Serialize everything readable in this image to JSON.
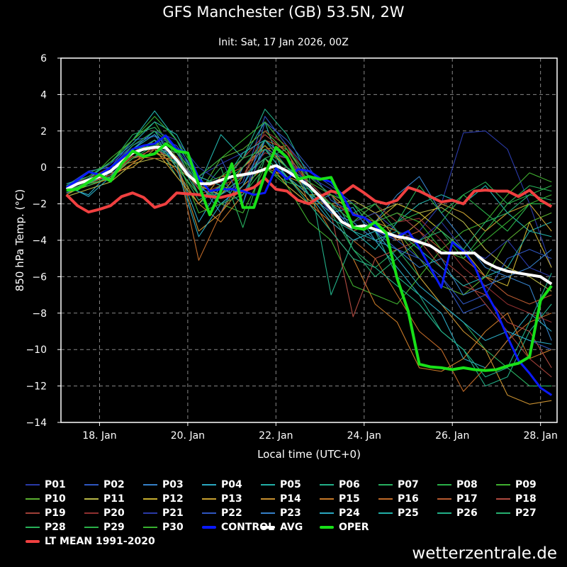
{
  "title": "GFS Manchester (GB) 53.5N, 2W",
  "subtitle": "Init: Sat, 17 Jan 2026, 00Z",
  "footer": "wetterzentrale.de",
  "chart_data": {
    "type": "line",
    "xlabel": "Local time (UTC+0)",
    "ylabel": "850 hPa Temp. (°C)",
    "ylim": [
      -14,
      6
    ],
    "yticks": [
      6,
      4,
      2,
      0,
      -2,
      -4,
      -6,
      -8,
      -10,
      -12,
      -14
    ],
    "xticks": [
      "18. Jan",
      "20. Jan",
      "22. Jan",
      "24. Jan",
      "26. Jan",
      "28. Jan"
    ],
    "xtick_dates": [
      "18 Jan 00",
      "20 Jan 00",
      "22 Jan 00",
      "24 Jan 00",
      "26 Jan 00",
      "28 Jan 00"
    ],
    "xlim": [
      "17 Jan 03",
      "28 Jan 09"
    ],
    "grid": true,
    "legend_placement": "bottom",
    "x": [
      "17 Jan 06",
      "17 Jan 12",
      "17 Jan 18",
      "18 Jan 00",
      "18 Jan 06",
      "18 Jan 12",
      "18 Jan 18",
      "19 Jan 00",
      "19 Jan 06",
      "19 Jan 12",
      "19 Jan 18",
      "20 Jan 00",
      "20 Jan 06",
      "20 Jan 12",
      "20 Jan 18",
      "21 Jan 00",
      "21 Jan 06",
      "21 Jan 12",
      "21 Jan 18",
      "22 Jan 00",
      "22 Jan 06",
      "22 Jan 12",
      "22 Jan 18",
      "23 Jan 00",
      "23 Jan 06",
      "23 Jan 12",
      "23 Jan 18",
      "24 Jan 00",
      "24 Jan 06",
      "24 Jan 12",
      "24 Jan 18",
      "25 Jan 00",
      "25 Jan 06",
      "25 Jan 12",
      "25 Jan 18",
      "26 Jan 00",
      "26 Jan 06",
      "26 Jan 12",
      "26 Jan 18",
      "27 Jan 00",
      "27 Jan 06",
      "27 Jan 12",
      "27 Jan 18",
      "28 Jan 00",
      "28 Jan 06"
    ],
    "x_members": [
      "17 Jan 06",
      "17 Jan 18",
      "18 Jan 06",
      "18 Jan 18",
      "19 Jan 06",
      "19 Jan 18",
      "20 Jan 06",
      "20 Jan 18",
      "21 Jan 06",
      "21 Jan 18",
      "22 Jan 06",
      "22 Jan 18",
      "23 Jan 06",
      "23 Jan 18",
      "24 Jan 06",
      "24 Jan 18",
      "25 Jan 06",
      "25 Jan 18",
      "26 Jan 06",
      "26 Jan 18",
      "27 Jan 06",
      "27 Jan 18",
      "28 Jan 06"
    ],
    "members": [
      {
        "name": "P01",
        "color": "#2a3aa8",
        "values": [
          -1.2,
          -0.6,
          -0.3,
          0.8,
          1.5,
          1.0,
          -0.5,
          0.2,
          0.8,
          1.5,
          0.5,
          -0.5,
          -1.2,
          -2.5,
          -3.0,
          -2.5,
          -3.5,
          -2.0,
          1.9,
          2.0,
          1.0,
          -2.0,
          -5.5
        ]
      },
      {
        "name": "P02",
        "color": "#2f56c0",
        "values": [
          -1.0,
          -0.2,
          0.0,
          1.2,
          1.8,
          0.8,
          -1.2,
          -1.5,
          -0.8,
          2.8,
          1.2,
          -0.2,
          -1.0,
          -2.0,
          -3.5,
          -4.0,
          -5.0,
          -6.0,
          -8.0,
          -7.5,
          -9.0,
          -9.5,
          -10.0
        ]
      },
      {
        "name": "P03",
        "color": "#3580c8",
        "values": [
          -1.4,
          -0.8,
          -0.5,
          0.5,
          1.0,
          0.5,
          -0.8,
          -2.5,
          0.0,
          1.0,
          0.0,
          -0.8,
          -2.0,
          -3.5,
          -3.0,
          -1.5,
          -0.5,
          -2.5,
          -4.0,
          -5.5,
          -6.0,
          -6.5,
          -9.5
        ]
      },
      {
        "name": "P04",
        "color": "#2aa8c0",
        "values": [
          -1.1,
          -1.5,
          -0.2,
          1.0,
          2.0,
          0.2,
          -3.0,
          -1.0,
          -2.0,
          1.5,
          0.0,
          -1.0,
          -2.5,
          -2.2,
          -4.0,
          -5.5,
          -7.0,
          -8.0,
          -10.5,
          -11.0,
          -9.5,
          -8.0,
          -9.0
        ]
      },
      {
        "name": "P05",
        "color": "#22b0a8",
        "values": [
          -0.9,
          -0.5,
          0.3,
          1.5,
          3.1,
          1.5,
          -1.0,
          1.8,
          0.5,
          2.5,
          -1.0,
          -2.0,
          -1.5,
          -3.5,
          -4.5,
          -3.0,
          -2.0,
          -1.5,
          -2.0,
          -1.0,
          -2.5,
          -3.5,
          -3.0
        ]
      },
      {
        "name": "P06",
        "color": "#22b088",
        "values": [
          -1.3,
          -1.0,
          -0.5,
          0.5,
          1.5,
          -0.5,
          -2.0,
          -1.0,
          0.5,
          3.2,
          1.8,
          -0.5,
          -7.0,
          -4.0,
          -3.5,
          -6.0,
          -7.0,
          -9.0,
          -10.0,
          -12.0,
          -11.5,
          -9.0,
          -7.5
        ]
      },
      {
        "name": "P07",
        "color": "#28b060",
        "values": [
          -1.2,
          -0.3,
          0.2,
          1.8,
          2.2,
          1.0,
          -1.5,
          0.0,
          -3.3,
          0.5,
          -0.5,
          -1.5,
          -2.5,
          -4.5,
          -5.5,
          -4.5,
          -6.0,
          -7.5,
          -8.5,
          -10.0,
          -11.0,
          -12.0,
          -12.0
        ]
      },
      {
        "name": "P08",
        "color": "#2ab048",
        "values": [
          -1.5,
          -0.9,
          -0.6,
          1.0,
          1.2,
          0.8,
          -0.5,
          -1.0,
          -1.5,
          0.0,
          -0.8,
          -1.2,
          -2.0,
          -2.5,
          -2.0,
          -3.0,
          -2.5,
          -3.5,
          -5.0,
          -3.5,
          -2.0,
          -1.5,
          -1.0
        ]
      },
      {
        "name": "P09",
        "color": "#40b030",
        "values": [
          -1.0,
          -0.7,
          0.5,
          1.5,
          2.5,
          0.5,
          -2.5,
          -2.0,
          -2.5,
          0.0,
          -1.0,
          -3.0,
          -4.0,
          -6.5,
          -7.0,
          -7.5,
          -6.0,
          -4.5,
          -3.5,
          -3.0,
          -1.5,
          -0.3,
          -0.8
        ]
      },
      {
        "name": "P10",
        "color": "#5ab030",
        "values": [
          -1.3,
          -0.8,
          0.0,
          0.8,
          1.5,
          0.0,
          -1.5,
          0.5,
          1.0,
          2.0,
          0.8,
          -1.0,
          -2.5,
          -3.0,
          -2.5,
          -3.5,
          -5.0,
          -6.5,
          -7.0,
          -6.0,
          -4.0,
          -3.0,
          -2.5
        ]
      },
      {
        "name": "P11",
        "color": "#b8b848",
        "values": [
          -1.6,
          -1.2,
          -0.8,
          0.2,
          0.5,
          0.0,
          -1.0,
          -1.5,
          -0.5,
          0.5,
          -0.5,
          -1.8,
          -2.0,
          -1.8,
          -2.5,
          -2.0,
          -2.5,
          -2.2,
          -3.0,
          -4.5,
          -5.5,
          -6.0,
          -6.8
        ]
      },
      {
        "name": "P12",
        "color": "#c8b030",
        "values": [
          -1.4,
          -1.0,
          -0.6,
          0.5,
          0.8,
          0.5,
          -1.0,
          -1.5,
          0.0,
          1.2,
          0.0,
          -1.5,
          -1.5,
          -2.5,
          -3.0,
          -2.0,
          -2.5,
          -3.5,
          -4.5,
          -6.0,
          -6.5,
          -3.0,
          -5.5
        ]
      },
      {
        "name": "P13",
        "color": "#c8a030",
        "values": [
          -1.5,
          -0.8,
          -0.3,
          0.0,
          1.0,
          -0.5,
          -2.0,
          -0.5,
          -0.5,
          0.5,
          -1.0,
          -2.0,
          -2.0,
          -3.0,
          -2.5,
          -4.0,
          -3.0,
          -2.0,
          -2.5,
          -3.5,
          -2.5,
          -2.0,
          -3.5
        ]
      },
      {
        "name": "P14",
        "color": "#c89030",
        "values": [
          -1.3,
          -0.6,
          0.0,
          0.3,
          0.8,
          0.2,
          -3.5,
          -2.5,
          -1.0,
          0.0,
          -0.5,
          -1.0,
          -2.0,
          -2.5,
          -3.0,
          -3.5,
          -6.0,
          -7.5,
          -9.0,
          -10.0,
          -12.5,
          -13.0,
          -12.8
        ]
      },
      {
        "name": "P15",
        "color": "#c87a28",
        "values": [
          -1.2,
          -1.0,
          -0.5,
          0.2,
          1.2,
          -0.2,
          -2.0,
          -3.0,
          -1.5,
          1.0,
          0.5,
          -1.5,
          -3.5,
          -5.0,
          -7.5,
          -8.5,
          -11.0,
          -11.2,
          -10.5,
          -9.0,
          -8.0,
          -10.5,
          -10.0
        ]
      },
      {
        "name": "P16",
        "color": "#c06a28",
        "values": [
          -1.4,
          -0.9,
          -0.4,
          0.6,
          0.5,
          0.5,
          -5.1,
          -2.5,
          -0.5,
          1.5,
          1.0,
          -2.0,
          -3.0,
          -4.0,
          -5.0,
          -7.0,
          -9.0,
          -10.0,
          -12.3,
          -11.0,
          -9.5,
          -8.5,
          -8.0
        ]
      },
      {
        "name": "P17",
        "color": "#b85a30",
        "values": [
          -1.1,
          -0.7,
          -0.2,
          1.0,
          1.3,
          0.6,
          -1.0,
          -0.5,
          0.0,
          1.0,
          1.2,
          -1.0,
          -2.5,
          -3.5,
          -3.0,
          -4.0,
          -3.5,
          -4.5,
          -5.0,
          -6.0,
          -7.0,
          -7.5,
          -7.0
        ]
      },
      {
        "name": "P18",
        "color": "#b04a40",
        "values": [
          -1.3,
          -0.8,
          -0.4,
          0.5,
          1.0,
          0.4,
          -1.2,
          -0.8,
          0.5,
          1.8,
          0.8,
          -1.0,
          -2.5,
          -8.2,
          -5.0,
          -4.5,
          -4.0,
          -5.5,
          -6.5,
          -7.0,
          -8.5,
          -9.0,
          -11.0
        ]
      },
      {
        "name": "P19",
        "color": "#a04038",
        "values": [
          -1.2,
          -1.0,
          -0.5,
          0.7,
          1.5,
          0.5,
          -1.5,
          -1.0,
          -0.5,
          0.8,
          0.5,
          -0.8,
          -2.0,
          -2.5,
          -3.0,
          -2.5,
          -3.5,
          -5.0,
          -6.0,
          -7.5,
          -9.0,
          -10.5,
          -11.5
        ]
      },
      {
        "name": "P20",
        "color": "#903030",
        "values": [
          -1.0,
          -0.6,
          0.0,
          1.0,
          1.0,
          0.8,
          -0.5,
          -1.0,
          -0.5,
          2.0,
          1.2,
          -0.5,
          -1.5,
          -3.0,
          -2.0,
          -3.0,
          -2.8,
          -4.0,
          -5.5,
          -6.5,
          -7.5,
          -8.0,
          -8.5
        ]
      },
      {
        "name": "P21",
        "color": "#2a3aa8",
        "values": [
          -1.1,
          -0.5,
          0.2,
          1.2,
          2.0,
          1.5,
          0.0,
          -0.8,
          -1.5,
          1.0,
          0.5,
          -1.0,
          -2.5,
          -3.0,
          -2.5,
          -3.5,
          -4.0,
          -3.0,
          -4.5,
          -5.0,
          -4.0,
          -5.5,
          -6.0
        ]
      },
      {
        "name": "P22",
        "color": "#2f56c0",
        "values": [
          -1.2,
          -0.7,
          0.0,
          1.5,
          1.7,
          1.2,
          -0.5,
          0.5,
          -2.0,
          2.5,
          1.5,
          0.0,
          -1.8,
          -2.5,
          -3.5,
          -4.5,
          -5.0,
          -6.0,
          -7.5,
          -7.0,
          -5.0,
          -4.5,
          -5.0
        ]
      },
      {
        "name": "P23",
        "color": "#3580c8",
        "values": [
          -1.4,
          -0.8,
          -0.3,
          0.8,
          1.2,
          0.5,
          -1.0,
          -2.0,
          -1.0,
          1.5,
          0.5,
          -1.5,
          -2.5,
          -3.0,
          -4.0,
          -4.5,
          -5.5,
          -5.0,
          -7.0,
          -6.5,
          -6.0,
          -5.5,
          -4.5
        ]
      },
      {
        "name": "P24",
        "color": "#2aa8c0",
        "values": [
          -1.0,
          -1.6,
          -0.5,
          1.0,
          1.8,
          0.0,
          -3.8,
          -2.0,
          -1.0,
          1.0,
          -0.5,
          -1.5,
          -3.0,
          -4.0,
          -3.5,
          -5.0,
          -6.5,
          -7.5,
          -8.5,
          -9.5,
          -9.0,
          -9.5,
          -9.7
        ]
      },
      {
        "name": "P25",
        "color": "#22b0a8",
        "values": [
          -1.2,
          -0.6,
          0.3,
          1.3,
          2.5,
          1.8,
          -0.5,
          -1.0,
          0.8,
          1.5,
          0.0,
          -1.2,
          -2.8,
          -3.5,
          -4.0,
          -3.5,
          -4.5,
          -5.5,
          -6.5,
          -6.0,
          -5.5,
          -3.5,
          -3.8
        ]
      },
      {
        "name": "P26",
        "color": "#22b088",
        "values": [
          -1.3,
          -0.9,
          -0.2,
          0.8,
          1.5,
          0.5,
          -1.5,
          -1.5,
          -0.5,
          0.5,
          -0.5,
          -2.0,
          -3.5,
          -5.0,
          -5.5,
          -6.5,
          -7.5,
          -9.0,
          -10.0,
          -11.5,
          -11.0,
          -8.5,
          -5.8
        ]
      },
      {
        "name": "P27",
        "color": "#26b070",
        "values": [
          -1.1,
          -0.7,
          0.0,
          1.0,
          1.3,
          0.2,
          -1.8,
          -1.0,
          0.0,
          1.5,
          0.0,
          -1.5,
          -2.0,
          -4.5,
          -6.0,
          -5.0,
          -4.0,
          -3.5,
          -4.5,
          -3.0,
          -2.5,
          -1.5,
          -1.8
        ]
      },
      {
        "name": "P28",
        "color": "#28b058",
        "values": [
          -1.2,
          -1.0,
          -0.5,
          0.5,
          1.2,
          0.8,
          -0.5,
          -2.0,
          -1.5,
          0.5,
          1.0,
          -0.5,
          -1.5,
          -2.0,
          -3.5,
          -3.0,
          -1.0,
          -2.5,
          -1.5,
          -0.8,
          -2.0,
          -1.0,
          -1.3
        ]
      },
      {
        "name": "P29",
        "color": "#2ab048",
        "values": [
          -1.3,
          -0.8,
          -0.2,
          1.2,
          2.0,
          1.0,
          -1.0,
          -0.5,
          0.5,
          1.0,
          0.0,
          -1.0,
          -2.0,
          -3.0,
          -2.0,
          -3.5,
          -4.5,
          -3.0,
          -1.5,
          -2.5,
          -3.5,
          -2.0,
          -2.0
        ]
      },
      {
        "name": "P30",
        "color": "#38b030",
        "values": [
          -1.0,
          -0.5,
          0.3,
          1.5,
          2.8,
          1.5,
          -0.5,
          0.5,
          1.5,
          2.5,
          1.0,
          -0.8,
          -1.5,
          -2.0,
          -3.0,
          -2.5,
          -3.0,
          -4.5,
          -5.0,
          -4.0,
          -3.0,
          -2.0,
          -1.5
        ]
      }
    ],
    "series": [
      {
        "name": "CONTROL",
        "color": "#0a1aff",
        "values": [
          -1.1,
          -0.7,
          -0.25,
          -0.4,
          0.0,
          0.5,
          1.0,
          1.2,
          1.3,
          1.75,
          1.0,
          0.8,
          -0.6,
          -1.3,
          -1.2,
          -1.2,
          -1.3,
          -1.5,
          -1.4,
          -0.05,
          -0.65,
          -0.1,
          -0.2,
          -0.6,
          -0.8,
          -1.5,
          -2.6,
          -2.75,
          -3.2,
          -3.7,
          -3.8,
          -3.5,
          -4.4,
          -5.5,
          -6.6,
          -4.1,
          -4.6,
          -5.4,
          -6.8,
          -7.9,
          -9.3,
          -10.6,
          -11.3,
          -12.1,
          -12.5
        ]
      },
      {
        "name": "AVG",
        "color": "#ffffff",
        "values": [
          -1.2,
          -0.9,
          -0.7,
          -0.5,
          -0.2,
          0.3,
          0.8,
          1.0,
          1.1,
          1.1,
          0.4,
          -0.4,
          -0.9,
          -0.9,
          -0.7,
          -0.5,
          -0.4,
          -0.3,
          -0.1,
          0.1,
          -0.2,
          -0.6,
          -1.0,
          -1.6,
          -2.3,
          -3.0,
          -3.3,
          -3.2,
          -3.4,
          -3.6,
          -3.8,
          -3.9,
          -4.1,
          -4.3,
          -4.7,
          -4.7,
          -4.7,
          -4.7,
          -5.2,
          -5.5,
          -5.7,
          -5.8,
          -5.9,
          -6.0,
          -6.4
        ]
      },
      {
        "name": "OPER",
        "color": "#18e018",
        "values": [
          -1.25,
          -1.2,
          -0.8,
          -0.4,
          -0.75,
          0.2,
          0.9,
          0.6,
          0.75,
          1.3,
          0.9,
          0.8,
          -0.95,
          -2.6,
          -1.3,
          0.2,
          -2.2,
          -2.2,
          -0.4,
          1.1,
          0.55,
          -0.65,
          -0.5,
          -0.65,
          -0.55,
          -1.8,
          -3.3,
          -3.4,
          -3.0,
          -3.6,
          -6.1,
          -7.9,
          -10.8,
          -10.95,
          -11.0,
          -11.1,
          -11.0,
          -11.1,
          -11.15,
          -11.1,
          -10.9,
          -10.75,
          -10.4,
          -7.3,
          -6.5
        ]
      },
      {
        "name": "LT MEAN 1991-2020",
        "color": "#f04040",
        "values": [
          -1.5,
          -2.1,
          -2.45,
          -2.3,
          -2.1,
          -1.6,
          -1.4,
          -1.65,
          -2.2,
          -2.0,
          -1.4,
          -1.45,
          -1.5,
          -1.6,
          -1.65,
          -1.5,
          -1.3,
          -1.1,
          -0.6,
          -1.2,
          -1.3,
          -1.8,
          -2.0,
          -1.6,
          -1.3,
          -1.45,
          -1.0,
          -1.4,
          -1.85,
          -2.0,
          -1.8,
          -1.1,
          -1.3,
          -1.6,
          -1.9,
          -1.8,
          -2.0,
          -1.3,
          -1.25,
          -1.3,
          -1.3,
          -1.6,
          -1.25,
          -1.8,
          -2.15
        ]
      }
    ]
  }
}
